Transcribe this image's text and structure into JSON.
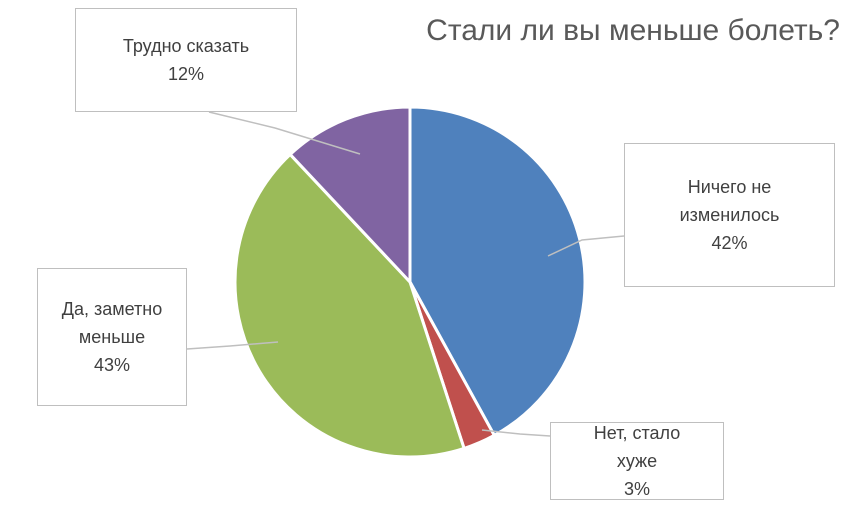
{
  "chart_data": {
    "type": "pie",
    "title": "Стали ли вы меньше болеть?",
    "categories": [
      "Ничего не изменилось",
      "Нет, стало хуже",
      "Да, заметно меньше",
      "Трудно сказать"
    ],
    "values": [
      42,
      3,
      43,
      12
    ],
    "value_labels": [
      "42%",
      "3%",
      "43%",
      "12%"
    ],
    "colors": [
      "#4f81bd",
      "#c0504d",
      "#9bbb59",
      "#8064a2"
    ]
  }
}
